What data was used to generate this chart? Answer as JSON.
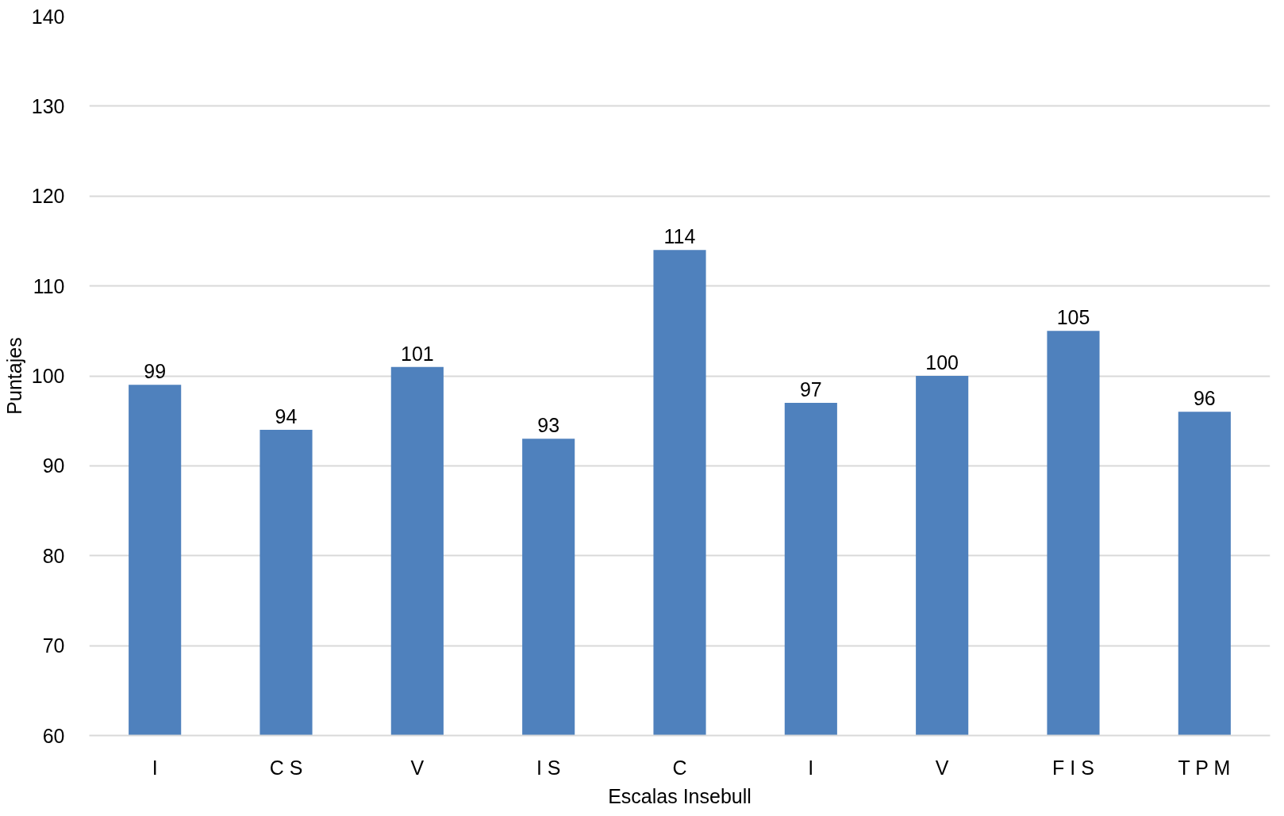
{
  "chart_data": {
    "type": "bar",
    "xlabel": "Escalas Insebull",
    "ylabel": "Puntajes",
    "categories": [
      "I",
      "C S",
      "V",
      "I S",
      "C",
      "I",
      "V",
      "F I S",
      "T P M"
    ],
    "values": [
      99,
      94,
      101,
      93,
      114,
      97,
      100,
      105,
      96
    ],
    "color": "#4f81bd",
    "ylim": [
      60,
      140
    ],
    "yticks": [
      60,
      70,
      80,
      90,
      100,
      110,
      120,
      130,
      140
    ],
    "grid": "y",
    "data_labels": true
  }
}
